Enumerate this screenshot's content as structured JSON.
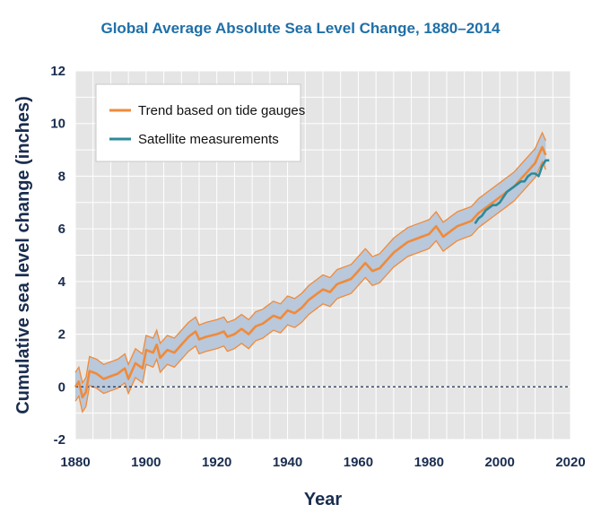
{
  "chart_data": {
    "type": "line",
    "title": "Global Average Absolute Sea Level Change, 1880–2014",
    "xlabel": "Year",
    "ylabel": "Cumulative sea level change (inches)",
    "xlim": [
      1880,
      2020
    ],
    "ylim": [
      -2,
      12
    ],
    "xticks": [
      "1880",
      "1900",
      "1920",
      "1940",
      "1960",
      "1980",
      "2000",
      "2020"
    ],
    "yticks": [
      "-2",
      "0",
      "2",
      "4",
      "6",
      "8",
      "10",
      "12"
    ],
    "grid": true,
    "legend_position": "top-left",
    "zero_reference_line": true,
    "colors": {
      "tide_line": "#f08a3a",
      "tide_band": "#b9c8da",
      "satellite_line": "#2e8a99",
      "grid": "#ffffff",
      "plot_background": "#e5e5e5",
      "title": "#1f6fa8",
      "axis_text": "#1a2d4f"
    },
    "series": [
      {
        "name": "Trend based on tide gauges",
        "x": [
          1880,
          1881,
          1882,
          1883,
          1884,
          1886,
          1888,
          1890,
          1892,
          1894,
          1895,
          1897,
          1899,
          1900,
          1902,
          1903,
          1904,
          1906,
          1908,
          1910,
          1912,
          1914,
          1915,
          1917,
          1920,
          1922,
          1923,
          1925,
          1927,
          1929,
          1931,
          1933,
          1934,
          1936,
          1938,
          1940,
          1942,
          1944,
          1946,
          1948,
          1950,
          1952,
          1954,
          1956,
          1958,
          1960,
          1962,
          1964,
          1966,
          1968,
          1970,
          1972,
          1974,
          1976,
          1978,
          1980,
          1982,
          1984,
          1986,
          1988,
          1990,
          1992,
          1994,
          1996,
          1998,
          2000,
          2002,
          2004,
          2006,
          2008,
          2010,
          2011,
          2012,
          2013
        ],
        "y": [
          0.0,
          0.2,
          -0.4,
          -0.2,
          0.6,
          0.5,
          0.3,
          0.4,
          0.5,
          0.7,
          0.3,
          0.9,
          0.7,
          1.4,
          1.3,
          1.6,
          1.1,
          1.4,
          1.3,
          1.6,
          1.9,
          2.1,
          1.8,
          1.9,
          2.0,
          2.1,
          1.9,
          2.0,
          2.2,
          2.0,
          2.3,
          2.4,
          2.5,
          2.7,
          2.6,
          2.9,
          2.8,
          3.0,
          3.3,
          3.5,
          3.7,
          3.6,
          3.9,
          4.0,
          4.1,
          4.4,
          4.7,
          4.4,
          4.5,
          4.8,
          5.1,
          5.3,
          5.5,
          5.6,
          5.7,
          5.8,
          6.1,
          5.7,
          5.9,
          6.1,
          6.2,
          6.3,
          6.6,
          6.8,
          7.0,
          7.2,
          7.4,
          7.6,
          7.9,
          8.2,
          8.5,
          8.8,
          9.1,
          8.8
        ],
        "uncertainty": 0.55
      },
      {
        "name": "Satellite measurements",
        "x": [
          1993,
          1994,
          1995,
          1996,
          1997,
          1998,
          1999,
          2000,
          2001,
          2002,
          2003,
          2004,
          2005,
          2006,
          2007,
          2008,
          2009,
          2010,
          2011,
          2012,
          2013,
          2014
        ],
        "y": [
          6.2,
          6.4,
          6.5,
          6.7,
          6.8,
          6.9,
          6.9,
          7.0,
          7.2,
          7.4,
          7.5,
          7.6,
          7.7,
          7.8,
          7.8,
          8.0,
          8.1,
          8.1,
          8.0,
          8.4,
          8.6,
          8.6
        ]
      }
    ]
  }
}
